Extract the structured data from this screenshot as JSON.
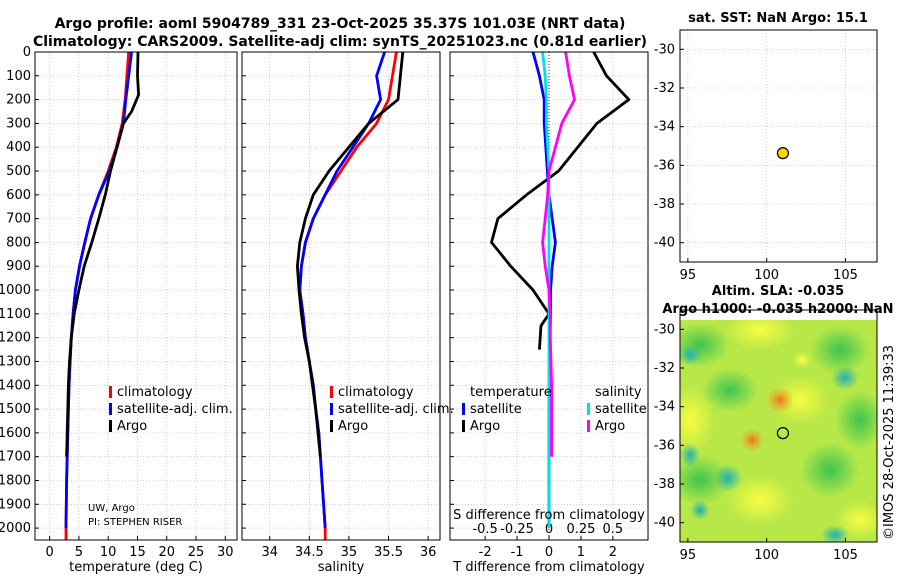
{
  "title": {
    "line1": "Argo profile: aoml 5904789_331 23-Oct-2025 35.37S 101.03E (NRT data)",
    "line2": "Climatology: CARS2009. Satellite-adj clim: synTS_20251023.nc (0.81d earlier)"
  },
  "colors": {
    "climatology": "#ff0000",
    "satellite": "#0000ff",
    "argo": "#000000",
    "t_satellite": "#0000ff",
    "s_satellite": "#00e0e0",
    "s_argo": "#ff00ff",
    "sst_marker": "#f2d600",
    "grid": "#b0b0b0"
  },
  "depth_axis": {
    "ticks": [
      0,
      100,
      200,
      300,
      400,
      500,
      600,
      700,
      800,
      900,
      1000,
      1100,
      1200,
      1300,
      1400,
      1500,
      1600,
      1700,
      1800,
      1900,
      2000
    ],
    "range": [
      0,
      2050
    ]
  },
  "credit": {
    "line1": "UW, Argo",
    "line2": "PI: STEPHEN RISER"
  },
  "watermark": "©IMOS 28-Oct-2025 11:39:33",
  "chart_data": [
    {
      "id": "temperature",
      "type": "line",
      "xlabel": "temperature (deg C)",
      "ylabel": "depth",
      "xlim": [
        -2.5,
        32
      ],
      "ylim": [
        2050,
        0
      ],
      "xticks": [
        0,
        5,
        10,
        15,
        20,
        25,
        30
      ],
      "legend": [
        "climatology",
        "satellite-adj. clim.",
        "Argo"
      ],
      "legend_position": "bottom-right",
      "series": [
        {
          "name": "climatology",
          "color": "#ff0000",
          "points": [
            [
              13.5,
              0
            ],
            [
              13.2,
              100
            ],
            [
              12.9,
              200
            ],
            [
              12.4,
              300
            ],
            [
              11.4,
              400
            ],
            [
              10.0,
              500
            ],
            [
              8.4,
              600
            ],
            [
              7.0,
              700
            ],
            [
              6.0,
              800
            ],
            [
              5.1,
              900
            ],
            [
              4.4,
              1000
            ],
            [
              4.0,
              1100
            ],
            [
              3.7,
              1200
            ],
            [
              3.5,
              1300
            ],
            [
              3.3,
              1400
            ],
            [
              3.2,
              1500
            ],
            [
              3.1,
              1600
            ],
            [
              3.0,
              1700
            ],
            [
              2.9,
              1800
            ],
            [
              2.85,
              1900
            ],
            [
              2.8,
              2000
            ],
            [
              2.8,
              2050
            ]
          ]
        },
        {
          "name": "satellite-adj. clim.",
          "color": "#0000ff",
          "points": [
            [
              14.0,
              0
            ],
            [
              13.5,
              100
            ],
            [
              13.0,
              200
            ],
            [
              12.6,
              300
            ],
            [
              11.5,
              400
            ],
            [
              10.2,
              500
            ],
            [
              8.4,
              600
            ],
            [
              7.0,
              700
            ],
            [
              6.0,
              800
            ],
            [
              5.1,
              900
            ],
            [
              4.4,
              1000
            ],
            [
              4.0,
              1100
            ],
            [
              3.7,
              1200
            ],
            [
              3.5,
              1300
            ],
            [
              3.3,
              1400
            ],
            [
              3.2,
              1500
            ],
            [
              3.1,
              1600
            ],
            [
              3.0,
              1700
            ],
            [
              2.9,
              1800
            ],
            [
              2.85,
              1900
            ],
            [
              2.8,
              2000
            ]
          ]
        },
        {
          "name": "Argo",
          "color": "#000000",
          "points": [
            [
              15.1,
              0
            ],
            [
              15.0,
              100
            ],
            [
              15.2,
              180
            ],
            [
              14.0,
              250
            ],
            [
              12.6,
              300
            ],
            [
              11.5,
              400
            ],
            [
              10.4,
              500
            ],
            [
              9.5,
              600
            ],
            [
              8.4,
              700
            ],
            [
              7.2,
              800
            ],
            [
              5.9,
              900
            ],
            [
              5.0,
              1000
            ],
            [
              4.2,
              1100
            ],
            [
              3.7,
              1200
            ],
            [
              3.4,
              1300
            ],
            [
              3.2,
              1400
            ],
            [
              3.1,
              1500
            ],
            [
              3.0,
              1600
            ],
            [
              2.9,
              1700
            ]
          ]
        }
      ]
    },
    {
      "id": "salinity",
      "type": "line",
      "xlabel": "salinity",
      "ylabel": "depth",
      "xlim": [
        33.65,
        36.15
      ],
      "ylim": [
        2050,
        0
      ],
      "xticks": [
        34,
        34.5,
        35,
        35.5,
        36
      ],
      "legend": [
        "climatology",
        "satellite-adj. clim.",
        "Argo"
      ],
      "legend_position": "bottom-right",
      "series": [
        {
          "name": "climatology",
          "color": "#ff0000",
          "points": [
            [
              35.6,
              0
            ],
            [
              35.55,
              100
            ],
            [
              35.5,
              200
            ],
            [
              35.35,
              300
            ],
            [
              35.1,
              400
            ],
            [
              34.9,
              500
            ],
            [
              34.7,
              600
            ],
            [
              34.55,
              700
            ],
            [
              34.45,
              800
            ],
            [
              34.4,
              900
            ],
            [
              34.38,
              1000
            ],
            [
              34.42,
              1100
            ],
            [
              34.45,
              1200
            ],
            [
              34.5,
              1300
            ],
            [
              34.55,
              1400
            ],
            [
              34.58,
              1500
            ],
            [
              34.62,
              1600
            ],
            [
              34.64,
              1700
            ],
            [
              34.66,
              1800
            ],
            [
              34.68,
              1900
            ],
            [
              34.7,
              2000
            ],
            [
              34.7,
              2050
            ]
          ]
        },
        {
          "name": "satellite-adj. clim.",
          "color": "#0000ff",
          "points": [
            [
              35.45,
              0
            ],
            [
              35.35,
              100
            ],
            [
              35.4,
              200
            ],
            [
              35.25,
              300
            ],
            [
              35.05,
              400
            ],
            [
              34.85,
              500
            ],
            [
              34.7,
              600
            ],
            [
              34.55,
              700
            ],
            [
              34.45,
              800
            ],
            [
              34.4,
              900
            ],
            [
              34.38,
              1000
            ],
            [
              34.42,
              1100
            ],
            [
              34.45,
              1200
            ],
            [
              34.5,
              1300
            ],
            [
              34.55,
              1400
            ],
            [
              34.58,
              1500
            ],
            [
              34.62,
              1600
            ],
            [
              34.64,
              1700
            ],
            [
              34.66,
              1800
            ],
            [
              34.68,
              1900
            ],
            [
              34.7,
              2000
            ]
          ]
        },
        {
          "name": "Argo",
          "color": "#000000",
          "points": [
            [
              35.68,
              0
            ],
            [
              35.65,
              100
            ],
            [
              35.62,
              200
            ],
            [
              35.25,
              300
            ],
            [
              35.0,
              400
            ],
            [
              34.75,
              500
            ],
            [
              34.55,
              600
            ],
            [
              34.45,
              700
            ],
            [
              34.38,
              800
            ],
            [
              34.35,
              900
            ],
            [
              34.37,
              1000
            ],
            [
              34.4,
              1100
            ],
            [
              34.44,
              1200
            ],
            [
              34.5,
              1300
            ],
            [
              34.54,
              1400
            ],
            [
              34.58,
              1500
            ],
            [
              34.61,
              1600
            ],
            [
              34.64,
              1700
            ]
          ]
        }
      ]
    },
    {
      "id": "difference",
      "type": "line",
      "xlabel": "T difference from climatology",
      "xlabel_top": "S difference from climatology",
      "ylabel": "depth",
      "xlim": [
        -3.1,
        3.1
      ],
      "ylim": [
        2050,
        0
      ],
      "xticks": [
        -2,
        -1,
        0,
        1,
        2
      ],
      "xticks_top": [
        -0.5,
        -0.25,
        0,
        0.25,
        0.5
      ],
      "legend_temperature": [
        "temperature",
        "satellite",
        "Argo"
      ],
      "legend_salinity": [
        "salinity",
        "satellite",
        "Argo"
      ],
      "legend_position": "bottom",
      "series": [
        {
          "name": "T Argo",
          "color": "#000000",
          "points": [
            [
              1.4,
              0
            ],
            [
              1.8,
              100
            ],
            [
              2.5,
              200
            ],
            [
              1.5,
              300
            ],
            [
              0.9,
              400
            ],
            [
              0.3,
              500
            ],
            [
              -0.7,
              600
            ],
            [
              -1.6,
              700
            ],
            [
              -1.8,
              800
            ],
            [
              -1.2,
              900
            ],
            [
              -0.5,
              1000
            ],
            [
              0.0,
              1100
            ],
            [
              -0.25,
              1150
            ],
            [
              -0.3,
              1250
            ]
          ]
        },
        {
          "name": "T satellite",
          "color": "#0000ff",
          "points": [
            [
              -0.5,
              0
            ],
            [
              -0.3,
              100
            ],
            [
              -0.15,
              200
            ],
            [
              -0.15,
              300
            ],
            [
              -0.1,
              400
            ],
            [
              -0.05,
              500
            ],
            [
              0.0,
              600
            ],
            [
              0.1,
              700
            ],
            [
              0.2,
              800
            ],
            [
              0.1,
              900
            ],
            [
              0.05,
              1000
            ],
            [
              0.05,
              1100
            ],
            [
              0.03,
              1200
            ],
            [
              0.0,
              1500
            ],
            [
              0.0,
              2000
            ]
          ]
        },
        {
          "name": "S satellite",
          "color": "#00e0e0",
          "points": [
            [
              -0.05,
              0
            ],
            [
              -0.03,
              100
            ],
            [
              -0.02,
              200
            ],
            [
              -0.02,
              300
            ],
            [
              -0.01,
              400
            ],
            [
              0.0,
              500
            ],
            [
              0.0,
              1000
            ],
            [
              0.0,
              1500
            ],
            [
              0.0,
              2000
            ]
          ]
        },
        {
          "name": "S Argo",
          "color": "#ff00ff",
          "points": [
            [
              0.13,
              0
            ],
            [
              0.16,
              100
            ],
            [
              0.2,
              200
            ],
            [
              0.1,
              300
            ],
            [
              0.05,
              400
            ],
            [
              0.0,
              500
            ],
            [
              -0.01,
              600
            ],
            [
              -0.03,
              700
            ],
            [
              -0.05,
              800
            ],
            [
              -0.03,
              900
            ],
            [
              0.0,
              1000
            ],
            [
              0.01,
              1100
            ],
            [
              0.01,
              1200
            ],
            [
              0.02,
              1400
            ],
            [
              0.02,
              1600
            ],
            [
              0.02,
              1700
            ]
          ]
        }
      ]
    },
    {
      "id": "sst-map",
      "type": "scatter",
      "title": "sat. SST: NaN Argo: 15.1",
      "xlim": [
        94.5,
        107
      ],
      "ylim": [
        -41,
        -29
      ],
      "xticks": [
        95,
        100,
        105
      ],
      "yticks": [
        -30,
        -32,
        -34,
        -36,
        -38,
        -40
      ],
      "points": [
        {
          "lon": 101.03,
          "lat": -35.37
        }
      ]
    },
    {
      "id": "sla-map",
      "type": "heatmap",
      "title_line1": "Altim. SLA: -0.035",
      "title_line2": "Argo h1000: -0.035 h2000: NaN",
      "xlim": [
        94.5,
        107
      ],
      "ylim": [
        -41,
        -29
      ],
      "xticks": [
        95,
        100,
        105
      ],
      "yticks": [
        -30,
        -32,
        -34,
        -36,
        -38,
        -40
      ],
      "points": [
        {
          "lon": 101.03,
          "lat": -35.37
        }
      ]
    }
  ]
}
